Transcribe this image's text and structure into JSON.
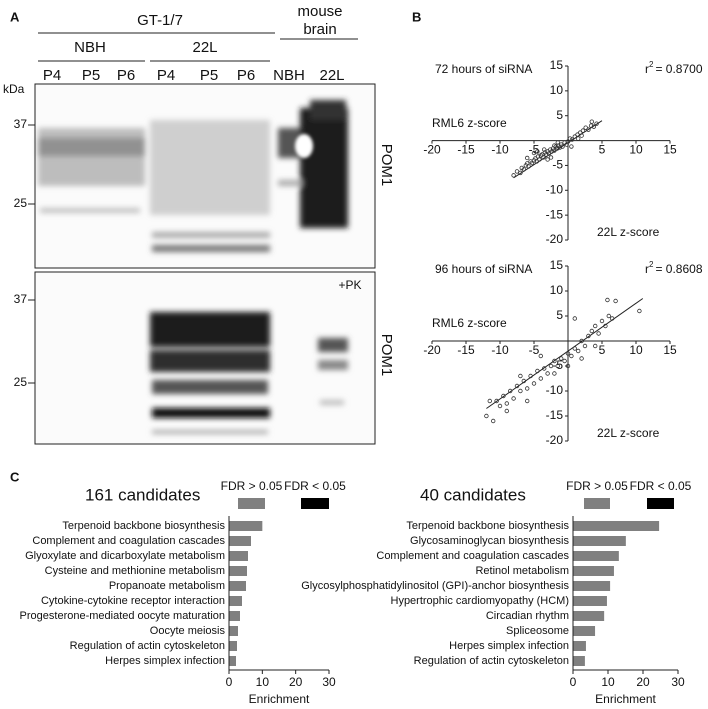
{
  "panel_labels": [
    "A",
    "B",
    "C"
  ],
  "blot": {
    "group_label": "GT-1/7",
    "group2_label": [
      "mouse",
      "brain"
    ],
    "subgroups": [
      "NBH",
      "22L"
    ],
    "lanes": [
      "P4",
      "P5",
      "P6",
      "P4",
      "P5",
      "P6",
      "NBH",
      "22L"
    ],
    "kda": "kDa",
    "top": {
      "markers": [
        37,
        25
      ],
      "antibody": "POM1"
    },
    "bottom": {
      "markers": [
        37,
        25
      ],
      "antibody": "POM1",
      "treatment": "+PK"
    }
  },
  "chart_data": [
    {
      "type": "scatter",
      "title": "72 hours of siRNA",
      "annotation": {
        "symbol": "r",
        "superscript": "2",
        "text": "= 0.8700"
      },
      "x_label": "RML6 z-score",
      "y_label": "22L z-score",
      "x": [
        -8,
        -7.5,
        -7,
        -6.8,
        -6.5,
        -6.2,
        -6,
        -5.8,
        -5.5,
        -5.3,
        -5,
        -4.8,
        -4.6,
        -4.4,
        -4.2,
        -4,
        -3.8,
        -3.6,
        -3.4,
        -3.2,
        -3,
        -2.8,
        -2.6,
        -2.4,
        -2.2,
        -2,
        -1.8,
        -1.6,
        -1.4,
        -1.2,
        -1,
        -0.8,
        -0.5,
        -0.2,
        0,
        0.3,
        0.6,
        1,
        1.4,
        1.8,
        2.2,
        2.6,
        3,
        3.4,
        3.8,
        4.2,
        -3.5,
        -2.5,
        -4.5,
        -1.5,
        0.5,
        2,
        3.5,
        -6,
        -5,
        -3,
        -2,
        1.5
      ],
      "y": [
        -7,
        -6.2,
        -6.5,
        -5.5,
        -5.8,
        -5,
        -4.6,
        -5.2,
        -4.2,
        -4.5,
        -4,
        -3.6,
        -4.2,
        -3.2,
        -3.8,
        -3,
        -2.8,
        -3.4,
        -2.4,
        -2.8,
        -2.2,
        -2.6,
        -1.8,
        -2.2,
        -1.6,
        -2,
        -1.2,
        -1.6,
        -1,
        -1.4,
        -0.8,
        -1.2,
        -0.4,
        -0.8,
        -0.2,
        0.4,
        0.2,
        0.8,
        1.2,
        1.6,
        2,
        2.6,
        2.2,
        3,
        2.8,
        3.4,
        -1.8,
        -3.4,
        -2.2,
        -0.4,
        -1.2,
        1,
        3.8,
        -3.5,
        -2.5,
        -3.8,
        -1,
        0.4
      ],
      "fit_line": {
        "x": [
          -8,
          5
        ],
        "y": [
          -7.5,
          4
        ]
      },
      "xlim": [
        -20,
        15
      ],
      "ylim": [
        -20,
        15
      ],
      "xticks": [
        -20,
        -15,
        -10,
        -5,
        5,
        10,
        15
      ],
      "yticks": [
        -20,
        -15,
        -10,
        -5,
        5,
        10,
        15
      ],
      "marker_color": "#333333"
    },
    {
      "type": "scatter",
      "title": "96 hours of siRNA",
      "annotation": {
        "symbol": "r",
        "superscript": "2",
        "text": "= 0.8608"
      },
      "x_label": "RML6 z-score",
      "y_label": "22L z-score",
      "x": [
        -12,
        -11,
        -10.5,
        -10,
        -9.5,
        -9,
        -8.5,
        -8,
        -7.5,
        -7,
        -6.5,
        -6,
        -5.5,
        -5,
        -4.5,
        -4,
        -3.5,
        -3,
        -2.5,
        -2,
        -1.5,
        -1,
        -0.5,
        0,
        0.5,
        1,
        1.5,
        2,
        2.5,
        3,
        3.5,
        4,
        4.5,
        5,
        5.5,
        6,
        6.5,
        7,
        10.5,
        -9,
        -6,
        -4,
        -2,
        0,
        2,
        -11.5,
        -7,
        1,
        4,
        5.8
      ],
      "y": [
        -15,
        -16,
        -12,
        -13,
        -11,
        -12.5,
        -10,
        -11.5,
        -9,
        -10,
        -8,
        -9.5,
        -7,
        -8.5,
        -6,
        -7.5,
        -5.5,
        -6.5,
        -5,
        -4,
        -5,
        -3.5,
        -4,
        -2.5,
        -3,
        -1.5,
        -2,
        0,
        -1,
        1,
        2,
        3,
        1.5,
        4,
        3,
        5,
        4.5,
        8,
        6,
        -14,
        -12,
        -3,
        -6.5,
        -5,
        -3.5,
        -12,
        -7,
        4.5,
        -1,
        8.2
      ],
      "fit_line": {
        "x": [
          -12,
          11
        ],
        "y": [
          -13.5,
          8.5
        ]
      },
      "xlim": [
        -20,
        15
      ],
      "ylim": [
        -20,
        15
      ],
      "xticks": [
        -20,
        -15,
        -10,
        -5,
        5,
        10,
        15
      ],
      "yticks": [
        -20,
        -15,
        -10,
        -5,
        5,
        10,
        15
      ],
      "marker_color": "#333333"
    },
    {
      "type": "bar",
      "orientation": "horizontal",
      "title": "161 candidates",
      "categories": [
        "Terpenoid backbone biosynthesis",
        "Complement and coagulation cascades",
        "Glyoxylate and dicarboxylate metabolism",
        "Cysteine and methionine metabolism",
        "Propanoate metabolism",
        "Cytokine-cytokine receptor interaction",
        "Progesterone-mediated oocyte maturation",
        "Oocyte meiosis",
        "Regulation of actin cytoskeleton",
        "Herpes simplex infection"
      ],
      "series": [
        {
          "name": "FDR > 0.05",
          "color": "#808080",
          "values": [
            10,
            6.6,
            5.7,
            5.4,
            5.1,
            3.9,
            3.3,
            2.7,
            2.4,
            2.1
          ]
        },
        {
          "name": "FDR < 0.05",
          "color": "#000000",
          "values": [
            null,
            null,
            null,
            null,
            null,
            null,
            null,
            null,
            null,
            null
          ]
        }
      ],
      "xlim": [
        0,
        30
      ],
      "xticks": [
        0,
        10,
        20,
        30
      ],
      "x_label": "Enrichment"
    },
    {
      "type": "bar",
      "orientation": "horizontal",
      "title": "40 candidates",
      "categories": [
        "Terpenoid backbone biosynthesis",
        "Glycosaminoglycan biosynthesis",
        "Complement and coagulation cascades",
        "Retinol metabolism",
        "Glycosylphosphatidylinositol (GPI)-anchor biosynthesis",
        "Hypertrophic cardiomyopathy (HCM)",
        "Circadian rhythm",
        "Spliceosome",
        "Herpes simplex infection",
        "Regulation of actin cytoskeleton"
      ],
      "series": [
        {
          "name": "FDR > 0.05",
          "color": "#808080",
          "values": [
            24.6,
            15.1,
            13.1,
            11.7,
            10.6,
            9.7,
            8.9,
            6.3,
            3.7,
            3.4
          ]
        },
        {
          "name": "FDR < 0.05",
          "color": "#000000",
          "values": [
            null,
            null,
            null,
            null,
            null,
            null,
            null,
            null,
            null,
            null
          ]
        }
      ],
      "xlim": [
        0,
        30
      ],
      "xticks": [
        0,
        10,
        20,
        30
      ],
      "x_label": "Enrichment"
    }
  ]
}
